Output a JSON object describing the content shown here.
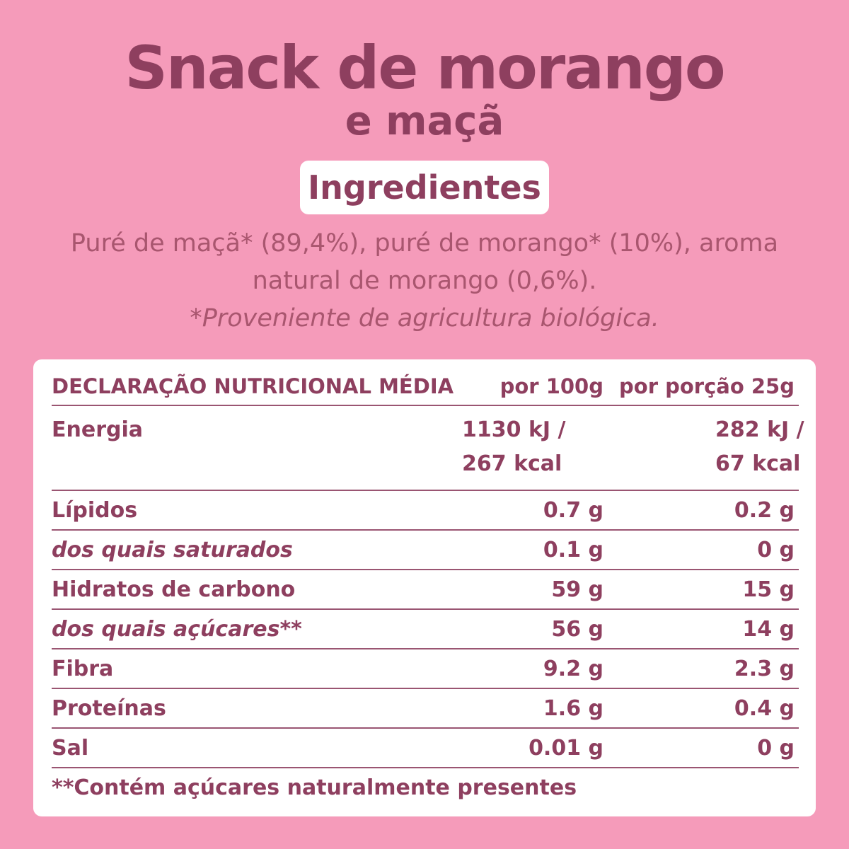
{
  "title": "Snack de morango",
  "subtitle": "e maçã",
  "ingredients": {
    "heading": "Ingredientes",
    "line1": "Puré de maçã* (89,4%), puré de morango* (10%), aroma",
    "line2": "natural de morango (0,6%).",
    "note": "*Proveniente de agricultura biológica."
  },
  "nutrition": {
    "headers": {
      "name": "DECLARAÇÃO NUTRICIONAL MÉDIA",
      "per100": "por 100g",
      "perPortion": "por porção 25g"
    },
    "energy": {
      "name": "Energia",
      "per100_kj": "1130 kJ /",
      "per100_kcal": "267 kcal",
      "portion_kj": "282 kJ /",
      "portion_kcal": "67 kcal"
    },
    "rows": [
      {
        "name": "Lípidos",
        "per100": "0.7 g",
        "portion": "0.2 g"
      },
      {
        "name": "dos quais saturados",
        "per100": "0.1 g",
        "portion": "0 g"
      },
      {
        "name": "Hidratos de carbono",
        "per100": "59 g",
        "portion": "15 g"
      },
      {
        "name": "dos quais açúcares**",
        "per100": "56 g",
        "portion": "14 g"
      },
      {
        "name": "Fibra",
        "per100": "9.2 g",
        "portion": "2.3 g"
      },
      {
        "name": "Proteínas",
        "per100": "1.6 g",
        "portion": "0.4 g"
      },
      {
        "name": "Sal",
        "per100": "0.01 g",
        "portion": "0 g"
      }
    ],
    "footnote": "**Contém açúcares naturalmente presentes"
  }
}
